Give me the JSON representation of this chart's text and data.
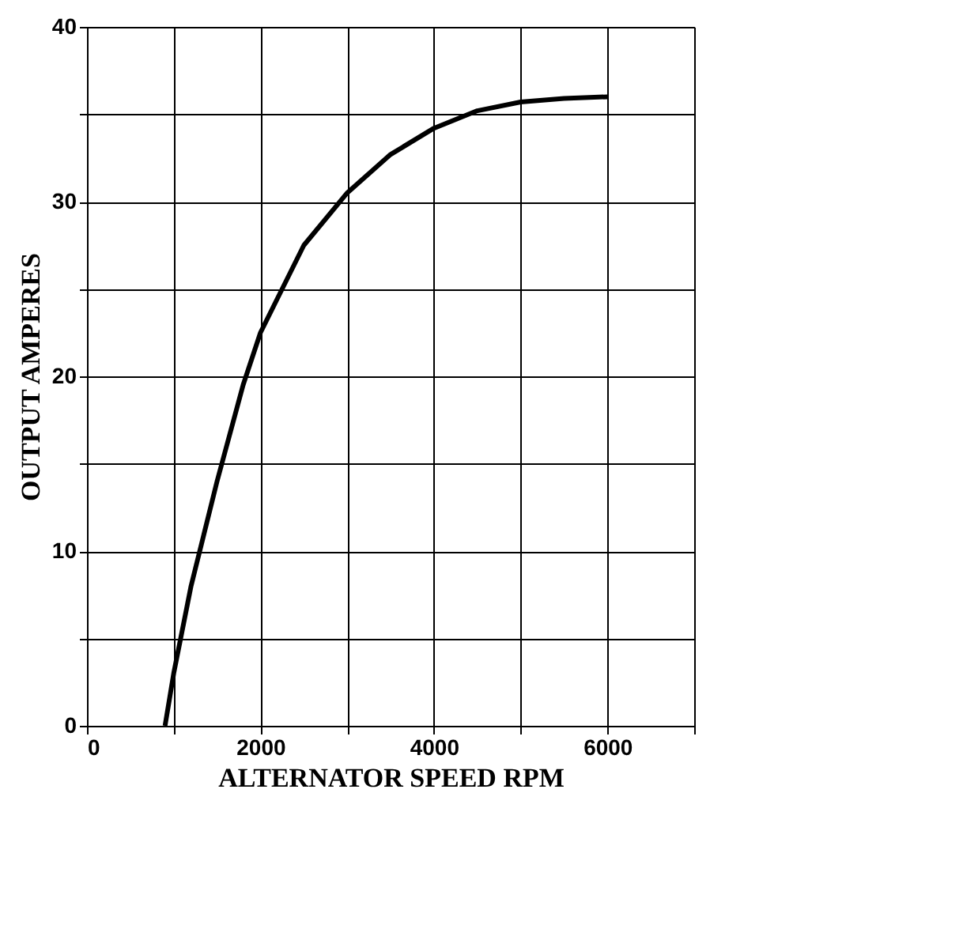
{
  "chart_data": {
    "type": "line",
    "xlabel": "ALTERNATOR SPEED RPM",
    "ylabel": "OUTPUT AMPERES",
    "x": [
      900,
      1000,
      1200,
      1500,
      1800,
      2000,
      2500,
      3000,
      3500,
      4000,
      4500,
      5000,
      5500,
      6000
    ],
    "series": [
      {
        "color": "#000000",
        "values": [
          0,
          3,
          8,
          14,
          19.5,
          22.5,
          27.5,
          30.5,
          32.7,
          34.2,
          35.2,
          35.7,
          35.9,
          36
        ]
      }
    ],
    "xlim": [
      0,
      7000
    ],
    "xticks": [
      0,
      {
        "value": 1000,
        "label": null
      },
      2000,
      {
        "value": 3000,
        "label": null
      },
      4000,
      {
        "value": 5000,
        "label": null
      },
      6000,
      {
        "value": 7000,
        "label": null
      }
    ],
    "ylim": [
      0,
      40
    ],
    "yticks": [
      0,
      {
        "value": 5,
        "label": null
      },
      10,
      {
        "value": 15,
        "label": null
      },
      20,
      {
        "value": 25,
        "label": null
      },
      30,
      {
        "value": 35,
        "label": null
      },
      40
    ],
    "grid": true,
    "marker": "none",
    "line_style": "solid"
  }
}
